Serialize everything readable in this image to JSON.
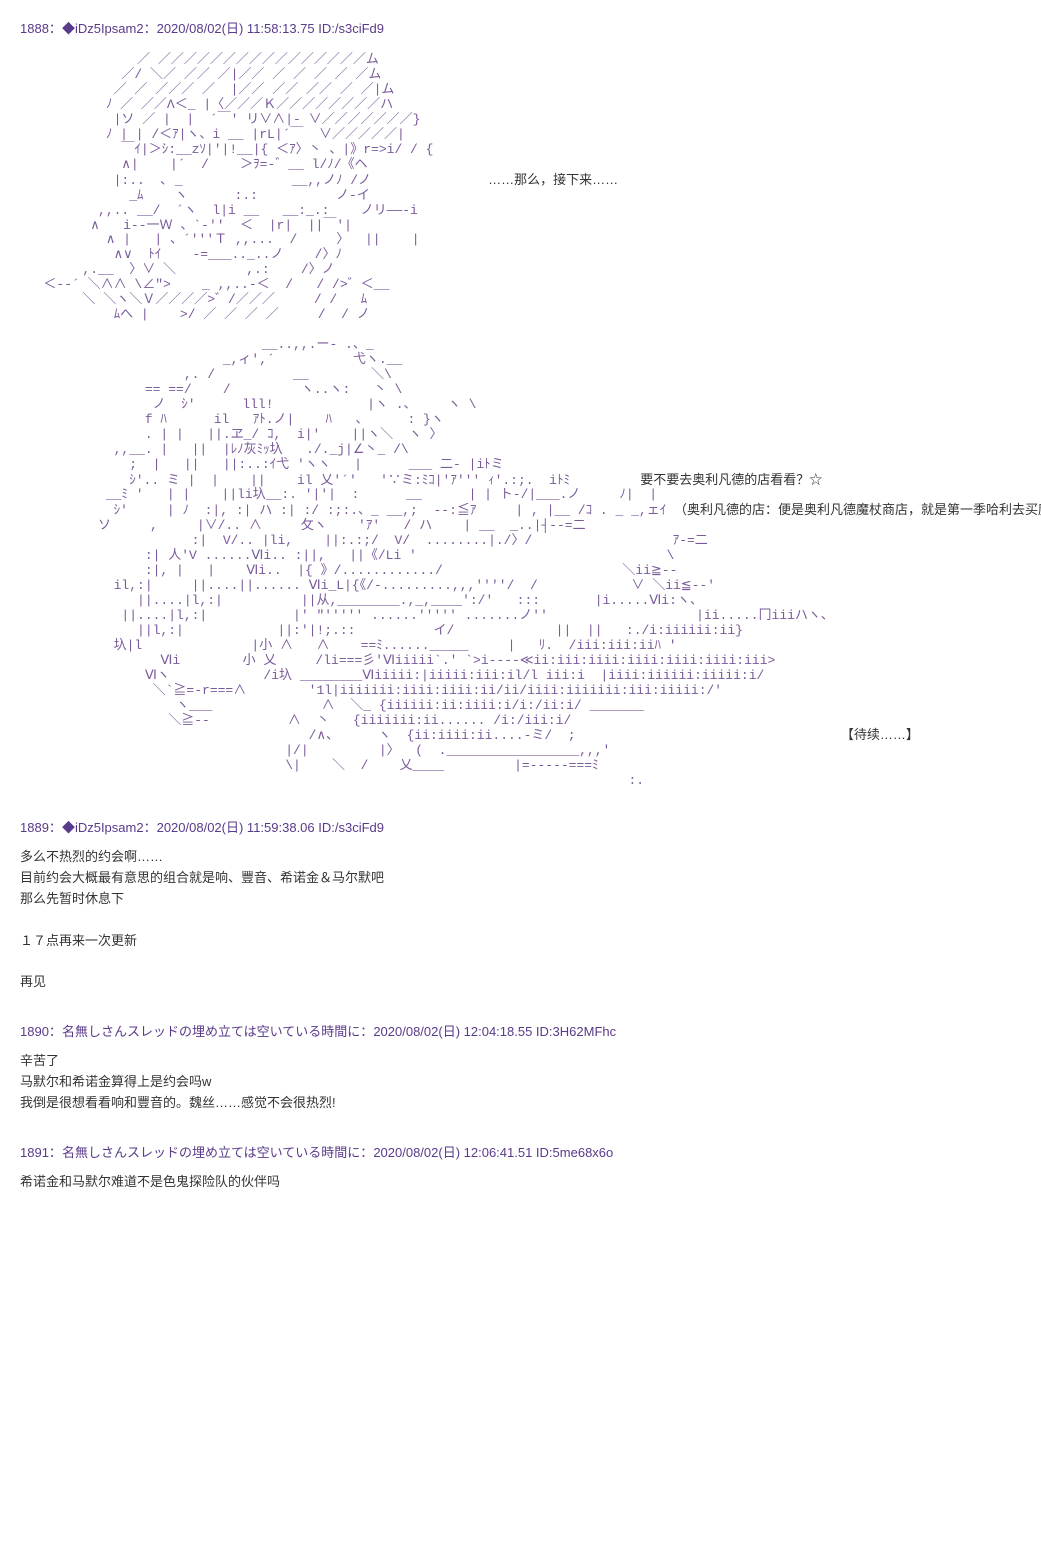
{
  "posts": [
    {
      "number": "1888",
      "tripcode": "◆iDz5Ipsam2",
      "timestamp": "2020/08/02(日) 11:58:13.75 ID:/s3ciFd9",
      "ascii1": "               ／ ／／／／／／／／／／／／／／／／ム\n             ／/ ＼／ ／／ ／|／／ ／ ／ ／ ／ ／ム\n            ／ ／ ／／／ ／  |／／ ／／ ／／ ／ ／|ム\n           ﾉ ／ ／／Λ＜_ |〈／／／Ｋ／／／／／／／／ハ\n            |ソ ／ |  |  ´￣' リ∨∧|- ∨／／／／／／／}\n           ﾉ | | /＜ｱ|ヽ、i __ |rL|´￣  ∨／／／／／|\n             ￣ｲ|＞ｼ:__zｿ|'|!__|{ ＜ｱ〉丶 、|》r=>i/ / {\n             ∧|    |´  /    ＞ｦ=-゛__ l/ﾉ/《ヘ\n            |:..  ､ _              __,,ノﾉ /ノ               <span class=\"annotation\">……那么，接下来……</span>\n              _ﾑ    ヽ      :.:          ノ-イ\n          ,,.. __/  ´ヽ  l|i __   __:_.:    ノリ――-i\n         ∧   i--一Ｗ 、`-''  ＜  |r|  ||￣'|\n           ∧ |   | 、´'''Ｔ ,,...  /     〉  ||    |\n            ∧∨  ﾄｲ    -=___.._..ノ    /〉ﾉ\n        ,.__  〉∨ ＼         ,.:    /〉ノ\n   ＜--´ ＼∧∧ \\∠\">    _ ,,..-＜  /   / />゛＜__\n        ＼ ＼ヽ＼Ｖ／／／／>゛/／／／     / /   ﾑ\n            ﾑへ |    >/ ／ ／ ／ ／     /  / ノ",
      "ascii2": "                               __..,,.ー- .、_\n                          _,ィ',´          弋ヽ.__\n                     ,. /          __        ＼\\\n                == ==/    /         ヽ..ヽ:   丶 \\\n                 ノ  ｼ'      lll!            |ヽ .、    ヽ \\\n                f ﾊ      il   ｱﾄ.ノ|    ﾊ   、     : }ヽ\n                . | |   ||.ヱ_/ ｺ,  i|'    ||ヽ＼  ヽ 〉\n            ,,__. |   ||  |ﾚﾉ灰ﾐｯ圦   ./._j|∠丶_ /\\\n              ;  |   ||   ||:..:ｲ弋 'ヽヽ   |      ___ 二- |iﾄミ\n              ｼ'.. ミ |  |    ||    il 乂'´'   '∵ミ:ﾐｺ|'ｱ''' ｨ'.:;.  iﾄﾐ         <span class=\"annotation\">要不要去奥利凡德的店看看？☆</span>\n           __ﾐ '   | |    ||li圦__:. '|'|  :      __      | | ト-/|___.ノ     ﾉ|  |\n            ｼ'     | ﾉ  :|, :| ハ :| :/ :;:.、_ __,;  --:≦ｱ     | , |__ /ｺ . _ _,ェｲ <span class=\"annotation\">（奥利凡德的店：便是奥利凡德魔杖商店，就是第一季哈利去买魔杖的店）</span>\n          ソ     ,     |∨/.. ∧     攵ヽ    'ｱ'   / ハ    | __  _..|┤--=二\n                      :|  V/.. |li,    ||:.:;/  V/  ........|./〉/                  ｱ-=二\n                :| 人'V ......Ⅵi.. :||,   ||《/Li '                                \\\n                :|, |   |    Ⅵi..  |{ 》/............/                       ＼ii≧--\n            il,:|     ||....||...... Ⅵi_L|{《/-.........,,,''''/  /            ∨ ＼ii≦--'\n               ||....|l,:|          ||从,________.,_,____':/'   :::       |i.....Ⅵi:ヽ、\n             ||....|l,:|           |' \"''''' ......''''' .......ノ''                   |ii.....冂iiiハヽ、\n               ||l,:|            ||:'|!;.::          イ/             ||  ||   :./i:iiiiii:ii}\n            圦|l              |小 ∧   ∧    ==ﾐ......_____     |   ﾘ.  /iii:iii:iiﾊ '\n                  Ⅵi        小 乂     /li===彡'Ⅵiiiii`.' `>i----≪ii:iii:iiii:iiii:iiii:iiii:iii>\n                Ⅵヽ            /i圦 ________Ⅵiiiii:|iiiii:iii:il/l iii:i  |iiii:iiiiii:iiiii:i/\n                 ＼`≧=-r===∧        '1l|iiiiiii:iiii:iiii:ii/ii/iiii:iiiiiii:iii:iiiii:/'\n                    ヽ___              ∧  ＼_ {iiiiii:ii:iiii:i/i:/ii:i/ _______\n                   ＼≧--          ∧  丶   {iiiiiii:ii...... /i:/iii:i/\n                                     /∧、     ヽ  {ii:iiii:ii....-ミ/  ;                                  <span class=\"annotation\">【待续……】</span>\n                                  |/|         |〉  (  ._________________,,,'\n                                  \\|    ＼  /    乂____         |=-----===ﾐ\n                                                                              :.",
      "continue_text": ""
    },
    {
      "number": "1889",
      "tripcode": "◆iDz5Ipsam2",
      "timestamp": "2020/08/02(日) 11:59:38.06 ID:/s3ciFd9",
      "body_lines": [
        "多么不热烈的约会啊……",
        "目前约会大概最有意思的组合就是响、豐音、希诺金＆马尔默吧",
        "那么先暂时休息下",
        "",
        "１７点再来一次更新",
        "",
        "再见"
      ]
    },
    {
      "number": "1890",
      "name": "名無しさんスレッドの埋め立ては空いている時間に",
      "timestamp": "2020/08/02(日) 12:04:18.55 ID:3H62MFhc",
      "body_lines": [
        "辛苦了",
        "马默尔和希诺金算得上是约会吗w",
        "我倒是很想看看响和豐音的。魏丝……感觉不会很热烈!"
      ]
    },
    {
      "number": "1891",
      "name": "名無しさんスレッドの埋め立ては空いている時間に",
      "timestamp": "2020/08/02(日) 12:06:41.51 ID:5me68x6o",
      "body_lines": [
        "希诺金和马默尔难道不是色鬼探险队的伙伴吗"
      ]
    }
  ],
  "colors": {
    "header": "#5a3a8a",
    "ascii": "#7a5a9a",
    "text": "#333333",
    "background": "#ffffff"
  }
}
